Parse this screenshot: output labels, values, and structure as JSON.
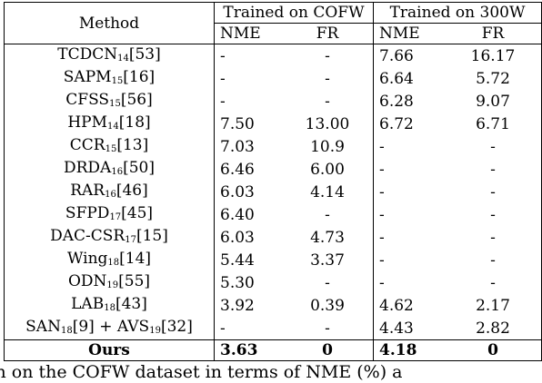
{
  "header": {
    "method": "Method",
    "group_cofw": "Trained on COFW",
    "group_300w": "Trained on 300W",
    "nme": "NME",
    "fr": "FR"
  },
  "rows": [
    {
      "name": "TCDCN",
      "sub": "14",
      "ref": "[53]",
      "cofw_nme": "-",
      "cofw_fr": "-",
      "w_nme": "7.66",
      "w_fr": "16.17"
    },
    {
      "name": "SAPM",
      "sub": "15",
      "ref": "[16]",
      "cofw_nme": "-",
      "cofw_fr": "-",
      "w_nme": "6.64",
      "w_fr": "5.72"
    },
    {
      "name": "CFSS",
      "sub": "15",
      "ref": "[56]",
      "cofw_nme": "-",
      "cofw_fr": "-",
      "w_nme": "6.28",
      "w_fr": "9.07"
    },
    {
      "name": "HPM",
      "sub": "14",
      "ref": "[18]",
      "cofw_nme": "7.50",
      "cofw_fr": "13.00",
      "w_nme": "6.72",
      "w_fr": "6.71"
    },
    {
      "name": "CCR",
      "sub": "15",
      "ref": "[13]",
      "cofw_nme": "7.03",
      "cofw_fr": "10.9",
      "w_nme": "-",
      "w_fr": "-"
    },
    {
      "name": "DRDA",
      "sub": "16",
      "ref": "[50]",
      "cofw_nme": "6.46",
      "cofw_fr": "6.00",
      "w_nme": "-",
      "w_fr": "-"
    },
    {
      "name": "RAR",
      "sub": "16",
      "ref": "[46]",
      "cofw_nme": "6.03",
      "cofw_fr": "4.14",
      "w_nme": "-",
      "w_fr": "-"
    },
    {
      "name": "SFPD",
      "sub": "17",
      "ref": "[45]",
      "cofw_nme": "6.40",
      "cofw_fr": "-",
      "w_nme": "-",
      "w_fr": "-"
    },
    {
      "name": "DAC-CSR",
      "sub": "17",
      "ref": "[15]",
      "cofw_nme": "6.03",
      "cofw_fr": "4.73",
      "w_nme": "-",
      "w_fr": "-"
    },
    {
      "name": "Wing",
      "sub": "18",
      "ref": "[14]",
      "cofw_nme": "5.44",
      "cofw_fr": "3.37",
      "w_nme": "-",
      "w_fr": "-"
    },
    {
      "name": "ODN",
      "sub": "19",
      "ref": "[55]",
      "cofw_nme": "5.30",
      "cofw_fr": "-",
      "w_nme": "-",
      "w_fr": "-"
    },
    {
      "name": "LAB",
      "sub": "18",
      "ref": "[43]",
      "cofw_nme": "3.92",
      "cofw_fr": "0.39",
      "w_nme": "4.62",
      "w_fr": "2.17"
    }
  ],
  "san_row": {
    "name_a": "SAN",
    "sub_a": "18",
    "ref_a": "[9] + AVS",
    "sub_b": "19",
    "ref_b": "[32]",
    "cofw_nme": "-",
    "cofw_fr": "-",
    "w_nme": "4.43",
    "w_fr": "2.82"
  },
  "ours_row": {
    "name": "Ours",
    "cofw_nme": "3.63",
    "cofw_fr": "0",
    "w_nme": "4.18",
    "w_fr": "0"
  },
  "caption": "ation on the COFW dataset in terms of NME (%) a"
}
